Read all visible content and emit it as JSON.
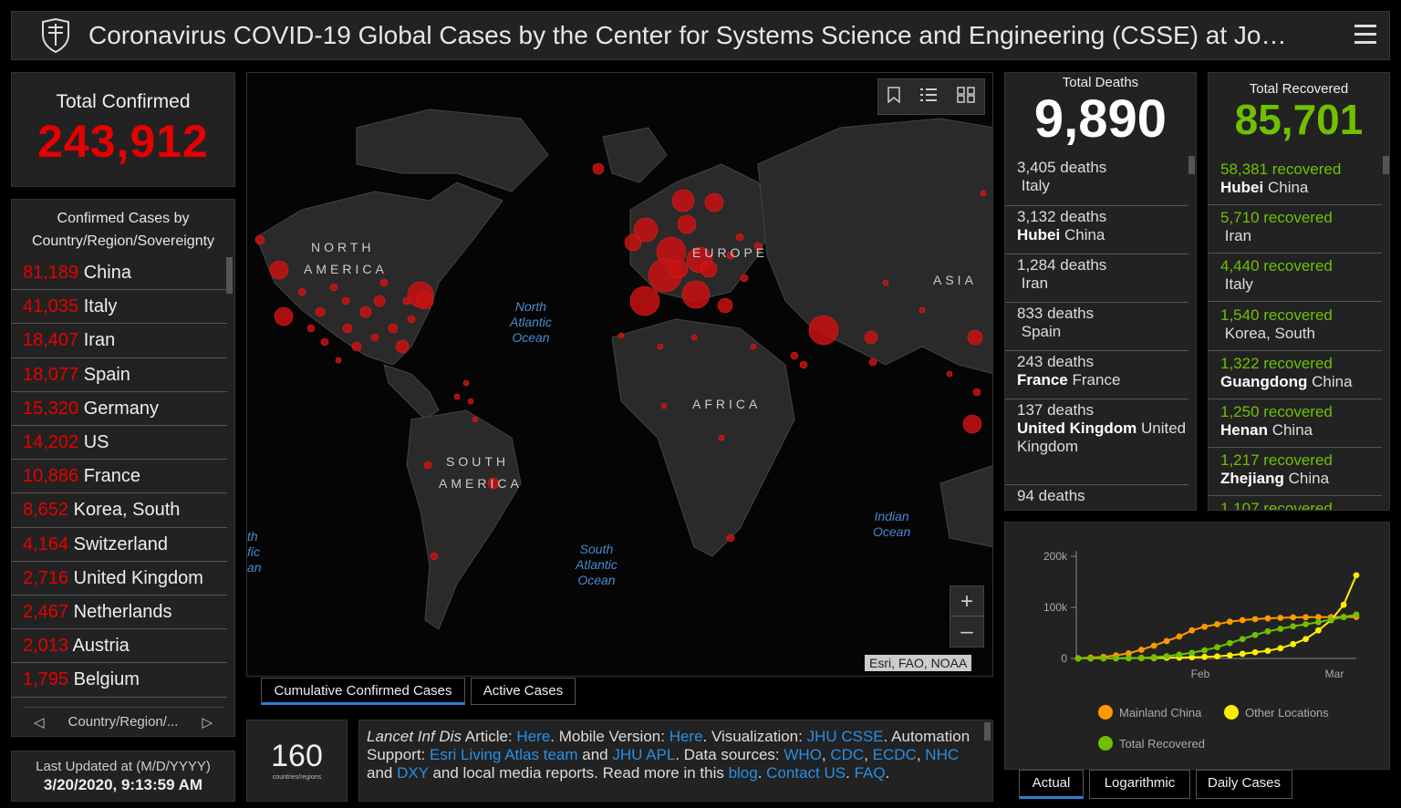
{
  "header": {
    "title": "Coronavirus COVID-19 Global Cases by the Center for Systems Science and Engineering (CSSE) at Jo…",
    "logo_icon": "shield-icon",
    "menu_icon": "hamburger-menu-icon"
  },
  "total_confirmed": {
    "label": "Total Confirmed",
    "value": "243,912"
  },
  "confirmed_by_country": {
    "header": "Confirmed Cases by Country/Region/Sovereignty",
    "rows": [
      {
        "num": "81,189",
        "name": "China"
      },
      {
        "num": "41,035",
        "name": "Italy"
      },
      {
        "num": "18,407",
        "name": "Iran"
      },
      {
        "num": "18,077",
        "name": "Spain"
      },
      {
        "num": "15,320",
        "name": "Germany"
      },
      {
        "num": "14,202",
        "name": "US"
      },
      {
        "num": "10,886",
        "name": "France"
      },
      {
        "num": "8,652",
        "name": "Korea, South"
      },
      {
        "num": "4,164",
        "name": "Switzerland"
      },
      {
        "num": "2,716",
        "name": "United Kingdom"
      },
      {
        "num": "2,467",
        "name": "Netherlands"
      },
      {
        "num": "2,013",
        "name": "Austria"
      },
      {
        "num": "1,795",
        "name": "Belgium"
      }
    ],
    "footer_label": "Country/Region/..."
  },
  "last_updated": {
    "label": "Last Updated at (M/D/YYYY)",
    "value": "3/20/2020, 9:13:59 AM"
  },
  "map": {
    "labels": [
      "NORTH",
      "AMERICA",
      "EUROPE",
      "ASIA",
      "AFRICA",
      "SOUTH",
      "AMERICA"
    ],
    "oceans": {
      "north_atlantic": [
        "North",
        "Atlantic",
        "Ocean"
      ],
      "south_atlantic": [
        "South",
        "Atlantic",
        "Ocean"
      ],
      "indian": [
        "Indian",
        "Ocean"
      ],
      "pacific": [
        "th",
        "fic",
        "an"
      ]
    },
    "attribution": "Esri, FAO, NOAA",
    "zoom_in": "+",
    "zoom_out": "–"
  },
  "map_tabs": [
    "Cumulative Confirmed Cases",
    "Active Cases"
  ],
  "countries": {
    "value": "160",
    "label": "countries/regions"
  },
  "info": {
    "p1": "Lancet Inf Dis",
    "p2": " Article: ",
    "l1": "Here",
    "p3": ". Mobile Version: ",
    "l2": "Here",
    "p4": ". Visualization: ",
    "l3": "JHU CSSE",
    "p5": ". Automation Support: ",
    "l4": "Esri Living Atlas team",
    "p6": " and ",
    "l5": "JHU APL",
    "p7": ". Data sources: ",
    "l6": "WHO",
    "l7": "CDC",
    "l8": "ECDC",
    "l9": "NHC",
    "l10": "DXY",
    "p8": " and local media reports. Read more in this ",
    "l11": "blog",
    "l12": "Contact US",
    "l13": "FAQ"
  },
  "total_deaths": {
    "label": "Total Deaths",
    "value": "9,890",
    "rows": [
      {
        "num": "3,405 deaths",
        "bold": "",
        "rest": "Italy"
      },
      {
        "num": "3,132 deaths",
        "bold": "Hubei",
        "rest": "China"
      },
      {
        "num": "1,284 deaths",
        "bold": "",
        "rest": "Iran"
      },
      {
        "num": "833 deaths",
        "bold": "",
        "rest": "Spain"
      },
      {
        "num": "243 deaths",
        "bold": "France",
        "rest": "France"
      },
      {
        "num": "137 deaths",
        "bold": "United Kingdom",
        "rest": "United Kingdom"
      },
      {
        "num": "94 deaths",
        "bold": "",
        "rest": ""
      }
    ]
  },
  "total_recovered": {
    "label": "Total Recovered",
    "value": "85,701",
    "rows": [
      {
        "num": "58,381 recovered",
        "bold": "Hubei",
        "rest": "China"
      },
      {
        "num": "5,710 recovered",
        "bold": "",
        "rest": "Iran"
      },
      {
        "num": "4,440 recovered",
        "bold": "",
        "rest": "Italy"
      },
      {
        "num": "1,540 recovered",
        "bold": "",
        "rest": "Korea, South"
      },
      {
        "num": "1,322 recovered",
        "bold": "Guangdong",
        "rest": "China"
      },
      {
        "num": "1,250 recovered",
        "bold": "Henan",
        "rest": "China"
      },
      {
        "num": "1,217 recovered",
        "bold": "Zhejiang",
        "rest": "China"
      },
      {
        "num": "1,107 recovered",
        "bold": "",
        "rest": ""
      }
    ]
  },
  "chart_tabs": [
    "Actual",
    "Logarithmic",
    "Daily Cases"
  ],
  "chart_data": {
    "type": "line",
    "ylim": [
      0,
      200000
    ],
    "yticks": [
      "200k",
      "100k",
      "0"
    ],
    "xticks": [
      "Feb",
      "Mar"
    ],
    "series": [
      {
        "name": "Mainland China",
        "color": "#ff9900",
        "values": [
          500,
          1500,
          3000,
          6000,
          10000,
          17000,
          25000,
          34000,
          43000,
          55000,
          62000,
          67000,
          72000,
          75000,
          77000,
          78500,
          79500,
          80300,
          80700,
          80900,
          81000,
          81100,
          81200
        ]
      },
      {
        "name": "Other Locations",
        "color": "#ffee00",
        "values": [
          50,
          100,
          200,
          300,
          500,
          800,
          1000,
          1300,
          1700,
          2200,
          3000,
          4000,
          6000,
          9000,
          12000,
          15000,
          20000,
          28000,
          38000,
          55000,
          75000,
          105000,
          163000
        ]
      },
      {
        "name": "Total Recovered",
        "color": "#70c000",
        "values": [
          0,
          50,
          100,
          300,
          600,
          1200,
          2500,
          4500,
          7500,
          11000,
          16000,
          22000,
          30000,
          38000,
          46000,
          53000,
          58000,
          63000,
          67000,
          71000,
          76000,
          81000,
          86000
        ]
      }
    ]
  }
}
